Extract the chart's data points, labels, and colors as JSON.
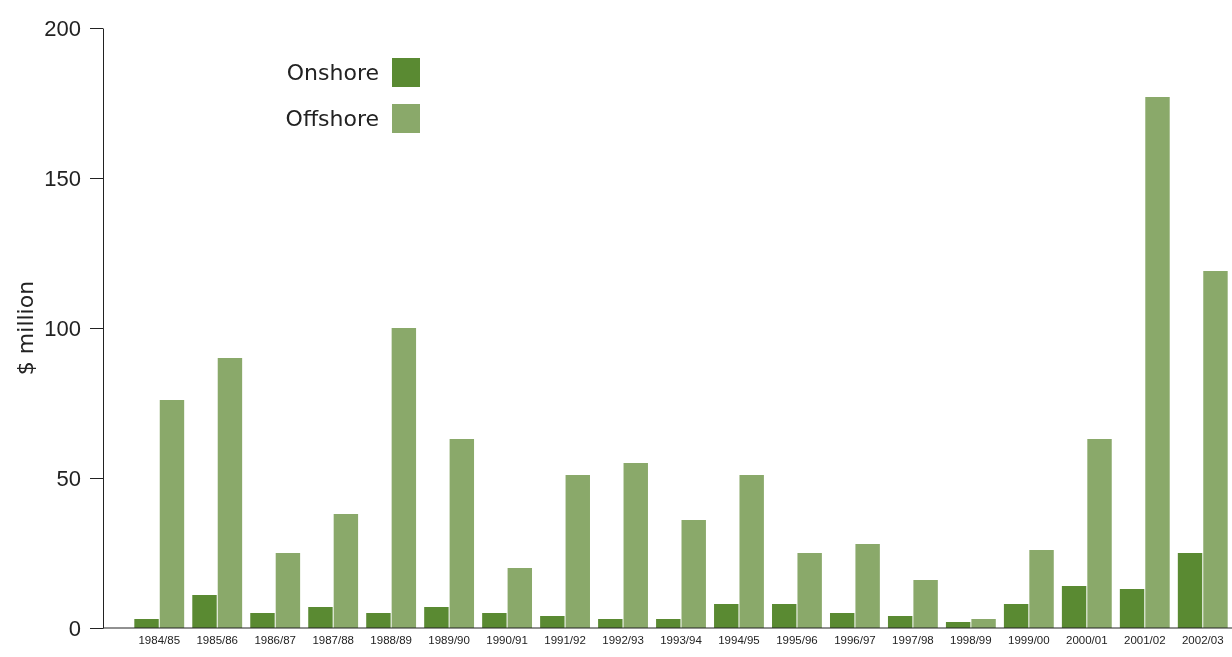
{
  "chart_data": {
    "type": "bar",
    "ylabel": "$ million",
    "categories": [
      "1984/85",
      "1985/86",
      "1986/87",
      "1987/88",
      "1988/89",
      "1989/90",
      "1990/91",
      "1991/92",
      "1992/93",
      "1993/94",
      "1994/95",
      "1995/96",
      "1996/97",
      "1997/98",
      "1998/99",
      "1999/00",
      "2000/01",
      "2001/02",
      "2002/03"
    ],
    "series": [
      {
        "name": "Onshore",
        "color": "#5a8a32",
        "values": [
          3,
          11,
          5,
          7,
          5,
          7,
          5,
          4,
          3,
          3,
          8,
          8,
          5,
          4,
          2,
          8,
          14,
          13,
          25
        ]
      },
      {
        "name": "Offshore",
        "color": "#8aa96a",
        "values": [
          76,
          90,
          25,
          38,
          100,
          63,
          20,
          51,
          55,
          36,
          51,
          25,
          28,
          16,
          3,
          26,
          63,
          177,
          119
        ]
      }
    ],
    "ylim": [
      0,
      200
    ],
    "yticks": [
      0,
      50,
      100,
      150,
      200
    ],
    "grid": false,
    "legend": "top left"
  }
}
